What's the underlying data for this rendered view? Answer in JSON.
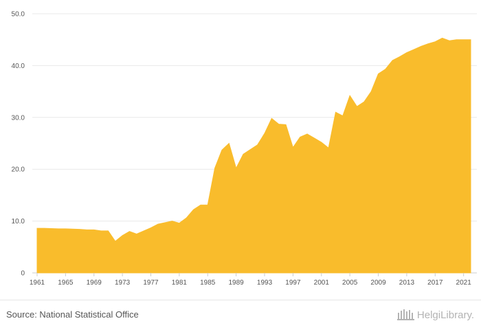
{
  "chart_data": {
    "type": "area",
    "x": [
      1961,
      1962,
      1963,
      1964,
      1965,
      1966,
      1967,
      1968,
      1969,
      1970,
      1971,
      1972,
      1973,
      1974,
      1975,
      1976,
      1977,
      1978,
      1979,
      1980,
      1981,
      1982,
      1983,
      1984,
      1985,
      1986,
      1987,
      1988,
      1989,
      1990,
      1991,
      1992,
      1993,
      1994,
      1995,
      1996,
      1997,
      1998,
      1999,
      2000,
      2001,
      2002,
      2003,
      2004,
      2005,
      2006,
      2007,
      2008,
      2009,
      2010,
      2011,
      2012,
      2013,
      2014,
      2015,
      2016,
      2017,
      2018,
      2019,
      2020,
      2021,
      2022
    ],
    "values": [
      8.6,
      8.6,
      8.55,
      8.5,
      8.5,
      8.45,
      8.4,
      8.3,
      8.3,
      8.1,
      8.1,
      6.1,
      7.2,
      8.0,
      7.5,
      8.1,
      8.7,
      9.4,
      9.7,
      10.0,
      9.6,
      10.6,
      12.2,
      13.1,
      13.1,
      20.2,
      23.7,
      25.0,
      20.2,
      22.9,
      23.8,
      24.7,
      26.9,
      29.8,
      28.7,
      28.6,
      24.2,
      26.2,
      26.8,
      26.0,
      25.2,
      24.1,
      31.0,
      30.3,
      34.2,
      32.1,
      33.0,
      35.0,
      38.4,
      39.3,
      41.0,
      41.7,
      42.5,
      43.1,
      43.7,
      44.2,
      44.6,
      45.3,
      44.8,
      45.0,
      45.0,
      45.0
    ],
    "xticks": [
      "1961",
      "1965",
      "1969",
      "1973",
      "1977",
      "1981",
      "1985",
      "1989",
      "1993",
      "1997",
      "2001",
      "2005",
      "2009",
      "2013",
      "2017",
      "2021"
    ],
    "yticks": [
      "0",
      "10.0",
      "20.0",
      "30.0",
      "40.0",
      "50.0"
    ],
    "ylim": [
      0,
      50
    ],
    "xlim": [
      1961,
      2022
    ],
    "title": "",
    "xlabel": "",
    "ylabel": "",
    "grid": true,
    "legend": "none",
    "fill_color": "#f9bc2c",
    "grid_color": "#e8e8e8"
  },
  "footer": {
    "source": "Source: National Statistical Office",
    "logo_text": "HelgiLibrary."
  }
}
